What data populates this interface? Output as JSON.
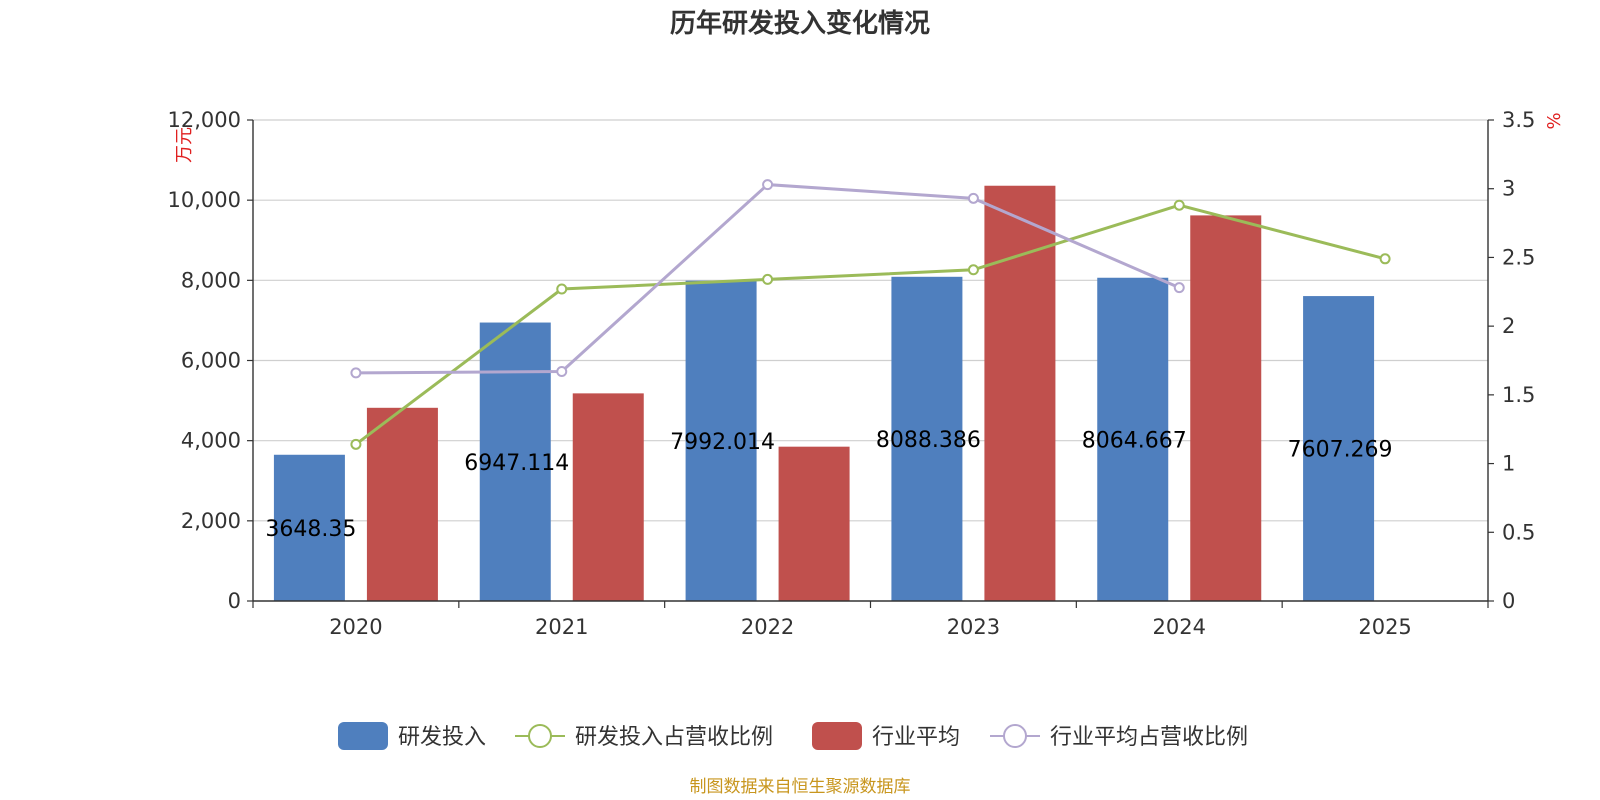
{
  "chart_data": {
    "type": "bar",
    "title": "历年研发投入变化情况",
    "categories": [
      "2020",
      "2021",
      "2022",
      "2023",
      "2024",
      "2025"
    ],
    "left_axis": {
      "unit": "万元",
      "min": 0,
      "max": 12000,
      "step": 2000,
      "tick_labels": [
        "0",
        "2,000",
        "4,000",
        "6,000",
        "8,000",
        "10,000",
        "12,000"
      ]
    },
    "right_axis": {
      "unit": "%",
      "min": 0,
      "max": 3.5,
      "step": 0.5,
      "tick_labels": [
        "0",
        "0.5",
        "1",
        "1.5",
        "2",
        "2.5",
        "3",
        "3.5"
      ]
    },
    "grid": true,
    "series": [
      {
        "name": "研发投入",
        "kind": "bar",
        "axis": "left",
        "color": "#4f7fbe",
        "values": [
          3648.35,
          6947.114,
          7992.014,
          8088.386,
          8064.667,
          7607.269
        ],
        "labels": [
          "3648.35",
          "6947.114",
          "7992.014",
          "8088.386",
          "8064.667",
          "7607.269"
        ]
      },
      {
        "name": "研发投入占营收比例",
        "kind": "line",
        "axis": "right",
        "color": "#9bbb59",
        "values": [
          1.14,
          2.27,
          2.34,
          2.41,
          2.88,
          2.49
        ]
      },
      {
        "name": "行业平均",
        "kind": "bar",
        "axis": "left",
        "color": "#c0504d",
        "values": [
          4820,
          5180,
          3850,
          10360,
          9620,
          null
        ]
      },
      {
        "name": "行业平均占营收比例",
        "kind": "line",
        "axis": "right",
        "color": "#b3a7cf",
        "values": [
          1.66,
          1.67,
          3.03,
          2.93,
          2.28,
          null
        ]
      }
    ],
    "legend_position": "bottom",
    "source": "制图数据来自恒生聚源数据库"
  }
}
